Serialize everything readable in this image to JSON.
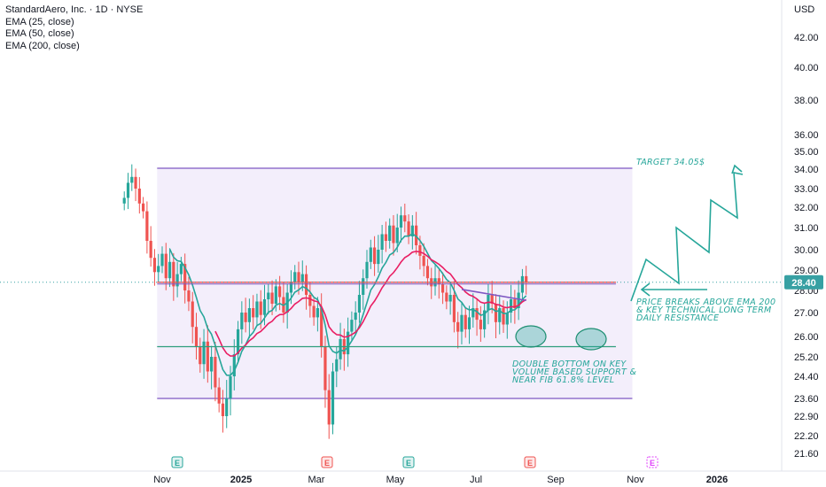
{
  "legend": {
    "title": "StandardAero, Inc. · 1D · NYSE",
    "lines": [
      "EMA (25, close)",
      "EMA (50, close)",
      "EMA (200, close)"
    ]
  },
  "chart_data": {
    "type": "candlestick",
    "currency": "USD",
    "last_price": "28.40",
    "y_ticks": [
      "42.00",
      "40.00",
      "38.00",
      "36.00",
      "35.00",
      "34.00",
      "33.00",
      "32.00",
      "31.00",
      "30.00",
      "29.00",
      "28.00",
      "27.00",
      "26.00",
      "25.20",
      "24.40",
      "23.60",
      "22.90",
      "22.20",
      "21.60"
    ],
    "x_ticks": [
      "Nov",
      "2025",
      "Mar",
      "May",
      "Jul",
      "Sep",
      "Nov",
      "2026"
    ],
    "x_ticks_bold": [
      "2025",
      "2026"
    ],
    "channel": {
      "top": 34.05,
      "bottom": 23.6,
      "start": "2024-10-28",
      "end": "2025-11-08"
    },
    "support_line": {
      "value": 25.6,
      "start": "2024-10-28",
      "end": "2025-10-26"
    },
    "resistance_line": {
      "value": 28.4,
      "start": "2024-10-28",
      "end": "2025-10-26"
    },
    "close_series": [
      [
        "2024-10-02",
        32.5
      ],
      [
        "2024-10-05",
        33.3
      ],
      [
        "2024-10-08",
        33.6
      ],
      [
        "2024-10-11",
        33.0
      ],
      [
        "2024-10-14",
        32.2
      ],
      [
        "2024-10-17",
        31.8
      ],
      [
        "2024-10-20",
        30.4
      ],
      [
        "2024-10-23",
        29.6
      ],
      [
        "2024-10-26",
        28.9
      ],
      [
        "2024-10-29",
        29.2
      ],
      [
        "2024-11-01",
        29.8
      ],
      [
        "2024-11-04",
        28.6
      ],
      [
        "2024-11-07",
        29.4
      ],
      [
        "2024-11-10",
        28.2
      ],
      [
        "2024-11-13",
        28.8
      ],
      [
        "2024-11-16",
        29.3
      ],
      [
        "2024-11-19",
        28.0
      ],
      [
        "2024-11-22",
        27.5
      ],
      [
        "2024-11-25",
        26.4
      ],
      [
        "2024-11-28",
        25.6
      ],
      [
        "2024-12-01",
        24.9
      ],
      [
        "2024-12-04",
        25.8
      ],
      [
        "2024-12-07",
        24.6
      ],
      [
        "2024-12-10",
        25.2
      ],
      [
        "2024-12-13",
        24.0
      ],
      [
        "2024-12-16",
        23.4
      ],
      [
        "2024-12-19",
        22.9
      ],
      [
        "2024-12-22",
        23.6
      ],
      [
        "2024-12-25",
        24.4
      ],
      [
        "2024-12-28",
        25.3
      ],
      [
        "2024-12-31",
        26.3
      ],
      [
        "2025-01-03",
        27.0
      ],
      [
        "2025-01-06",
        26.6
      ],
      [
        "2025-01-09",
        27.2
      ],
      [
        "2025-01-12",
        26.8
      ],
      [
        "2025-01-15",
        27.5
      ],
      [
        "2025-01-18",
        26.9
      ],
      [
        "2025-01-21",
        27.6
      ],
      [
        "2025-01-24",
        27.9
      ],
      [
        "2025-01-27",
        27.4
      ],
      [
        "2025-01-30",
        28.2
      ],
      [
        "2025-02-02",
        27.7
      ],
      [
        "2025-02-05",
        27.0
      ],
      [
        "2025-02-08",
        27.9
      ],
      [
        "2025-02-11",
        28.4
      ],
      [
        "2025-02-14",
        28.9
      ],
      [
        "2025-02-17",
        28.4
      ],
      [
        "2025-02-20",
        28.8
      ],
      [
        "2025-02-23",
        27.8
      ],
      [
        "2025-02-26",
        27.3
      ],
      [
        "2025-03-01",
        26.8
      ],
      [
        "2025-03-04",
        27.2
      ],
      [
        "2025-03-07",
        25.6
      ],
      [
        "2025-03-10",
        23.9
      ],
      [
        "2025-03-13",
        22.6
      ],
      [
        "2025-03-16",
        24.6
      ],
      [
        "2025-03-19",
        25.1
      ],
      [
        "2025-03-22",
        25.9
      ],
      [
        "2025-03-25",
        25.3
      ],
      [
        "2025-03-28",
        26.2
      ],
      [
        "2025-03-31",
        26.7
      ],
      [
        "2025-04-03",
        27.0
      ],
      [
        "2025-04-06",
        27.8
      ],
      [
        "2025-04-09",
        28.6
      ],
      [
        "2025-04-12",
        29.4
      ],
      [
        "2025-04-15",
        30.1
      ],
      [
        "2025-04-18",
        29.3
      ],
      [
        "2025-04-21",
        30.0
      ],
      [
        "2025-04-24",
        30.7
      ],
      [
        "2025-04-27",
        30.4
      ],
      [
        "2025-04-30",
        31.1
      ],
      [
        "2025-05-03",
        30.3
      ],
      [
        "2025-05-06",
        31.0
      ],
      [
        "2025-05-09",
        31.6
      ],
      [
        "2025-05-12",
        31.3
      ],
      [
        "2025-05-15",
        30.6
      ],
      [
        "2025-05-18",
        31.1
      ],
      [
        "2025-05-21",
        30.2
      ],
      [
        "2025-05-24",
        29.7
      ],
      [
        "2025-05-27",
        29.2
      ],
      [
        "2025-05-30",
        28.6
      ],
      [
        "2025-06-02",
        28.2
      ],
      [
        "2025-06-05",
        28.6
      ],
      [
        "2025-06-08",
        28.3
      ],
      [
        "2025-06-11",
        27.9
      ],
      [
        "2025-06-14",
        27.5
      ],
      [
        "2025-06-17",
        27.8
      ],
      [
        "2025-06-20",
        26.6
      ],
      [
        "2025-06-23",
        26.2
      ],
      [
        "2025-06-26",
        26.9
      ],
      [
        "2025-06-29",
        26.3
      ],
      [
        "2025-07-02",
        26.8
      ],
      [
        "2025-07-05",
        27.2
      ],
      [
        "2025-07-08",
        26.7
      ],
      [
        "2025-07-11",
        26.3
      ],
      [
        "2025-07-14",
        27.1
      ],
      [
        "2025-07-17",
        27.8
      ],
      [
        "2025-07-20",
        27.4
      ],
      [
        "2025-07-23",
        26.6
      ],
      [
        "2025-07-26",
        27.2
      ],
      [
        "2025-07-29",
        26.5
      ],
      [
        "2025-08-01",
        27.0
      ],
      [
        "2025-08-04",
        27.6
      ],
      [
        "2025-08-07",
        27.2
      ],
      [
        "2025-08-10",
        27.9
      ],
      [
        "2025-08-13",
        28.7
      ],
      [
        "2025-08-16",
        28.4
      ]
    ]
  },
  "annotations": {
    "target": "TARGET 34.05$",
    "breakout": [
      "PRICE BREAKS ABOVE EMA 200",
      "& KEY TECHNICAL LONG TERM",
      "DAILY RESISTANCE"
    ],
    "double_bottom": [
      "DOUBLE BOTTOM  ON KEY",
      "VOLUME BASED SUPPORT &",
      "NEAR FIB 61.8% LEVEL"
    ]
  },
  "earnings_markers": [
    {
      "label": "E",
      "type": "positive"
    },
    {
      "label": "E",
      "type": "negative"
    },
    {
      "label": "E",
      "type": "positive"
    },
    {
      "label": "E",
      "type": "negative"
    },
    {
      "label": "E",
      "type": "upcoming"
    }
  ],
  "colors": {
    "up": "#26a69a",
    "down": "#ef5350",
    "ema25": "#26a69a",
    "ema50": "#e91e63",
    "ema200": "#7e57c2",
    "channel": "#7e57c2",
    "channel_fill": "#f3eefb",
    "support": "#2e9e7d",
    "resistance": "#ef5350",
    "price_badge": "#37a0a3",
    "upcoming": "#e040fb"
  }
}
